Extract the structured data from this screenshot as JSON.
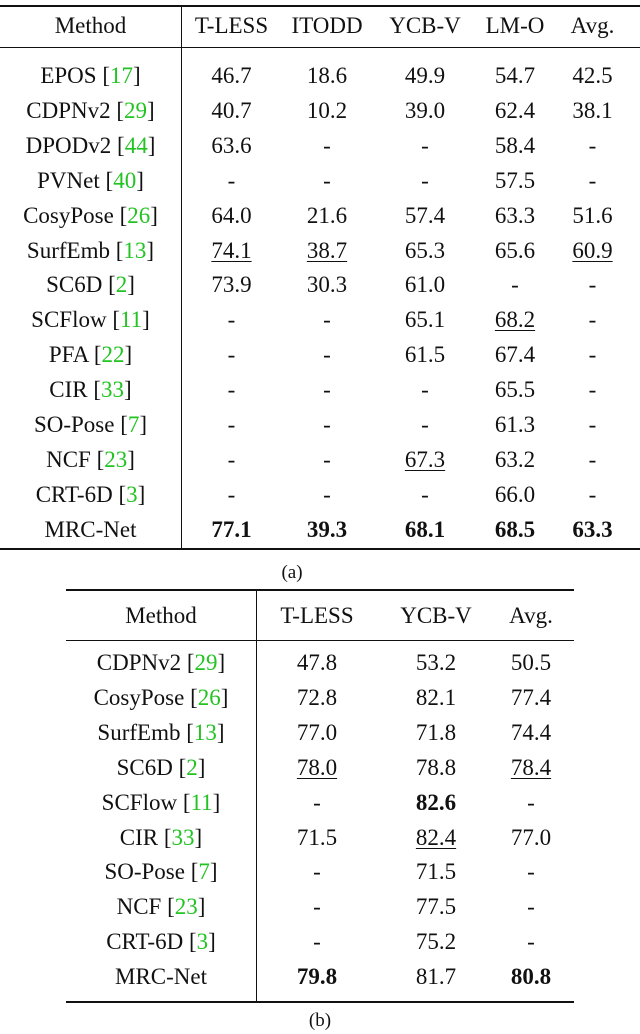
{
  "table_a": {
    "headers": [
      "Method",
      "T-LESS",
      "ITODD",
      "YCB-V",
      "LM-O",
      "Avg."
    ],
    "rows": [
      {
        "method": "EPOS",
        "ref": "17",
        "cells": [
          {
            "v": "46.7"
          },
          {
            "v": "18.6"
          },
          {
            "v": "49.9"
          },
          {
            "v": "54.7"
          },
          {
            "v": "42.5"
          }
        ]
      },
      {
        "method": "CDPNv2",
        "ref": "29",
        "cells": [
          {
            "v": "40.7"
          },
          {
            "v": "10.2"
          },
          {
            "v": "39.0"
          },
          {
            "v": "62.4"
          },
          {
            "v": "38.1"
          }
        ]
      },
      {
        "method": "DPODv2",
        "ref": "44",
        "cells": [
          {
            "v": "63.6"
          },
          {
            "v": "-"
          },
          {
            "v": "-"
          },
          {
            "v": "58.4"
          },
          {
            "v": "-"
          }
        ]
      },
      {
        "method": "PVNet",
        "ref": "40",
        "cells": [
          {
            "v": "-"
          },
          {
            "v": "-"
          },
          {
            "v": "-"
          },
          {
            "v": "57.5"
          },
          {
            "v": "-"
          }
        ]
      },
      {
        "method": "CosyPose",
        "ref": "26",
        "cells": [
          {
            "v": "64.0"
          },
          {
            "v": "21.6"
          },
          {
            "v": "57.4"
          },
          {
            "v": "63.3"
          },
          {
            "v": "51.6"
          }
        ]
      },
      {
        "method": "SurfEmb",
        "ref": "13",
        "cells": [
          {
            "v": "74.1",
            "u": true
          },
          {
            "v": "38.7",
            "u": true
          },
          {
            "v": "65.3"
          },
          {
            "v": "65.6"
          },
          {
            "v": "60.9",
            "u": true
          }
        ]
      },
      {
        "method": "SC6D",
        "ref": "2",
        "cells": [
          {
            "v": "73.9"
          },
          {
            "v": "30.3"
          },
          {
            "v": "61.0"
          },
          {
            "v": "-"
          },
          {
            "v": "-"
          }
        ]
      },
      {
        "method": "SCFlow",
        "ref": "11",
        "cells": [
          {
            "v": "-"
          },
          {
            "v": "-"
          },
          {
            "v": "65.1"
          },
          {
            "v": "68.2",
            "u": true
          },
          {
            "v": "-"
          }
        ]
      },
      {
        "method": "PFA",
        "ref": "22",
        "cells": [
          {
            "v": "-"
          },
          {
            "v": "-"
          },
          {
            "v": "61.5"
          },
          {
            "v": "67.4"
          },
          {
            "v": "-"
          }
        ]
      },
      {
        "method": "CIR",
        "ref": "33",
        "cells": [
          {
            "v": "-"
          },
          {
            "v": "-"
          },
          {
            "v": "-"
          },
          {
            "v": "65.5"
          },
          {
            "v": "-"
          }
        ]
      },
      {
        "method": "SO-Pose",
        "ref": "7",
        "cells": [
          {
            "v": "-"
          },
          {
            "v": "-"
          },
          {
            "v": "-"
          },
          {
            "v": "61.3"
          },
          {
            "v": "-"
          }
        ]
      },
      {
        "method": "NCF",
        "ref": "23",
        "cells": [
          {
            "v": "-"
          },
          {
            "v": "-"
          },
          {
            "v": "67.3",
            "u": true
          },
          {
            "v": "63.2"
          },
          {
            "v": "-"
          }
        ]
      },
      {
        "method": "CRT-6D",
        "ref": "3",
        "cells": [
          {
            "v": "-"
          },
          {
            "v": "-"
          },
          {
            "v": "-"
          },
          {
            "v": "66.0"
          },
          {
            "v": "-"
          }
        ]
      },
      {
        "method": "MRC-Net",
        "ref": "",
        "cells": [
          {
            "v": "77.1",
            "b": true
          },
          {
            "v": "39.3",
            "b": true
          },
          {
            "v": "68.1",
            "b": true
          },
          {
            "v": "68.5",
            "b": true
          },
          {
            "v": "63.3",
            "b": true
          }
        ]
      }
    ],
    "caption": "(a)"
  },
  "table_b": {
    "headers": [
      "Method",
      "T-LESS",
      "YCB-V",
      "Avg."
    ],
    "rows": [
      {
        "method": "CDPNv2",
        "ref": "29",
        "cells": [
          {
            "v": "47.8"
          },
          {
            "v": "53.2"
          },
          {
            "v": "50.5"
          }
        ]
      },
      {
        "method": "CosyPose",
        "ref": "26",
        "cells": [
          {
            "v": "72.8"
          },
          {
            "v": "82.1"
          },
          {
            "v": "77.4"
          }
        ]
      },
      {
        "method": "SurfEmb",
        "ref": "13",
        "cells": [
          {
            "v": "77.0"
          },
          {
            "v": "71.8"
          },
          {
            "v": "74.4"
          }
        ]
      },
      {
        "method": "SC6D",
        "ref": "2",
        "cells": [
          {
            "v": "78.0",
            "u": true
          },
          {
            "v": "78.8"
          },
          {
            "v": "78.4",
            "u": true
          }
        ]
      },
      {
        "method": "SCFlow",
        "ref": "11",
        "cells": [
          {
            "v": "-"
          },
          {
            "v": "82.6",
            "b": true
          },
          {
            "v": "-"
          }
        ]
      },
      {
        "method": "CIR",
        "ref": "33",
        "cells": [
          {
            "v": "71.5"
          },
          {
            "v": "82.4",
            "u": true
          },
          {
            "v": "77.0"
          }
        ]
      },
      {
        "method": "SO-Pose",
        "ref": "7",
        "cells": [
          {
            "v": "-"
          },
          {
            "v": "71.5"
          },
          {
            "v": "-"
          }
        ]
      },
      {
        "method": "NCF",
        "ref": "23",
        "cells": [
          {
            "v": "-"
          },
          {
            "v": "77.5"
          },
          {
            "v": "-"
          }
        ]
      },
      {
        "method": "CRT-6D",
        "ref": "3",
        "cells": [
          {
            "v": "-"
          },
          {
            "v": "75.2"
          },
          {
            "v": "-"
          }
        ]
      },
      {
        "method": "MRC-Net",
        "ref": "",
        "cells": [
          {
            "v": "79.8",
            "b": true
          },
          {
            "v": "81.7"
          },
          {
            "v": "80.8",
            "b": true
          }
        ]
      }
    ],
    "caption": "(b)"
  },
  "colors": {
    "text": "#111111",
    "reference_link": "#22c322",
    "background": "#ffffff"
  }
}
